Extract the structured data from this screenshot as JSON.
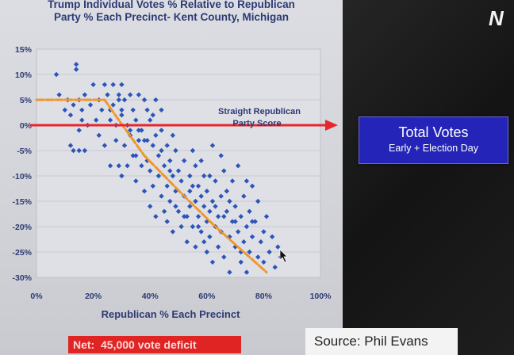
{
  "chart_data": {
    "type": "scatter",
    "title": "Trump Individual Votes % Relative to Republican Party % Each Precinct- Kent County, Michigan",
    "title_lines": [
      "Trump Individual Votes % Relative to Republican",
      "Party % Each Precinct- Kent County, Michigan"
    ],
    "xlabel": "Republican % Each Precinct",
    "ylabel": "",
    "xlim": [
      0,
      100
    ],
    "ylim": [
      -30,
      15
    ],
    "x_ticks": [
      0,
      20,
      40,
      60,
      80,
      100
    ],
    "x_tick_labels": [
      "0%",
      "20%",
      "40%",
      "60%",
      "80%",
      "100%"
    ],
    "y_ticks": [
      15,
      10,
      5,
      0,
      -5,
      -10,
      -15,
      -20,
      -25,
      -30
    ],
    "y_tick_labels": [
      "15%",
      "10%",
      "5%",
      "0%",
      "-5%",
      "-10%",
      "-15%",
      "-20%",
      "-25%",
      "-30%"
    ],
    "grid": true,
    "marker_color": "#2b55b8",
    "trend_color": "#f0962a",
    "reference_color": "#e5262a",
    "series": [
      {
        "points": [
          [
            7,
            10
          ],
          [
            8,
            6
          ],
          [
            10,
            3
          ],
          [
            11,
            5
          ],
          [
            12,
            2
          ],
          [
            13,
            4
          ],
          [
            14,
            12
          ],
          [
            14,
            11
          ],
          [
            15,
            5
          ],
          [
            16,
            3
          ],
          [
            16,
            1
          ],
          [
            17,
            6
          ],
          [
            12,
            -4
          ],
          [
            13,
            -5
          ],
          [
            15,
            -5
          ],
          [
            15,
            -1
          ],
          [
            17,
            -5
          ],
          [
            18,
            0
          ],
          [
            19,
            4
          ],
          [
            20,
            8
          ],
          [
            21,
            1
          ],
          [
            22,
            5
          ],
          [
            22,
            -2
          ],
          [
            23,
            3
          ],
          [
            24,
            8
          ],
          [
            24,
            -4
          ],
          [
            25,
            6
          ],
          [
            26,
            1
          ],
          [
            26,
            -8
          ],
          [
            27,
            8
          ],
          [
            27,
            4
          ],
          [
            28,
            0
          ],
          [
            28,
            -3
          ],
          [
            29,
            6
          ],
          [
            29,
            -8
          ],
          [
            30,
            8
          ],
          [
            30,
            2
          ],
          [
            30,
            -10
          ],
          [
            31,
            5
          ],
          [
            31,
            -4
          ],
          [
            32,
            0
          ],
          [
            32,
            -8
          ],
          [
            33,
            6
          ],
          [
            33,
            -2
          ],
          [
            34,
            3
          ],
          [
            34,
            -6
          ],
          [
            35,
            1
          ],
          [
            35,
            -11
          ],
          [
            35,
            -6
          ],
          [
            36,
            6
          ],
          [
            36,
            -3
          ],
          [
            37,
            -1
          ],
          [
            37,
            -8
          ],
          [
            38,
            5
          ],
          [
            38,
            -13
          ],
          [
            38,
            -3
          ],
          [
            39,
            3
          ],
          [
            39,
            -7
          ],
          [
            40,
            1
          ],
          [
            40,
            -9
          ],
          [
            40,
            -16
          ],
          [
            41,
            -4
          ],
          [
            41,
            -12
          ],
          [
            42,
            5
          ],
          [
            42,
            -2
          ],
          [
            42,
            -18
          ],
          [
            43,
            -6
          ],
          [
            43,
            -10
          ],
          [
            44,
            3
          ],
          [
            44,
            -14
          ],
          [
            44,
            -1
          ],
          [
            45,
            -8
          ],
          [
            45,
            -17
          ],
          [
            46,
            -4
          ],
          [
            46,
            -12
          ],
          [
            46,
            -19
          ],
          [
            47,
            -7
          ],
          [
            47,
            -15
          ],
          [
            48,
            -2
          ],
          [
            48,
            -10
          ],
          [
            48,
            -21
          ],
          [
            49,
            -13
          ],
          [
            49,
            -5
          ],
          [
            50,
            -17
          ],
          [
            50,
            -9
          ],
          [
            51,
            -11
          ],
          [
            51,
            -20
          ],
          [
            52,
            -7
          ],
          [
            52,
            -14
          ],
          [
            53,
            -18
          ],
          [
            53,
            -23
          ],
          [
            54,
            -10
          ],
          [
            54,
            -16
          ],
          [
            55,
            -12
          ],
          [
            55,
            -20
          ],
          [
            56,
            -8
          ],
          [
            56,
            -15
          ],
          [
            56,
            -24
          ],
          [
            57,
            -18
          ],
          [
            57,
            -12
          ],
          [
            58,
            -21
          ],
          [
            58,
            -14
          ],
          [
            59,
            -16
          ],
          [
            59,
            -10
          ],
          [
            60,
            -19
          ],
          [
            60,
            -25
          ],
          [
            60,
            -13
          ],
          [
            61,
            -22
          ],
          [
            61,
            -17
          ],
          [
            62,
            -15
          ],
          [
            62,
            -4
          ],
          [
            62,
            -27
          ],
          [
            63,
            -20
          ],
          [
            63,
            -11
          ],
          [
            64,
            -18
          ],
          [
            64,
            -24
          ],
          [
            65,
            -14
          ],
          [
            65,
            -21
          ],
          [
            66,
            -9
          ],
          [
            66,
            -26
          ],
          [
            67,
            -17
          ],
          [
            67,
            -13
          ],
          [
            68,
            -22
          ],
          [
            68,
            -29
          ],
          [
            69,
            -19
          ],
          [
            69,
            -11
          ],
          [
            70,
            -16
          ],
          [
            70,
            -24
          ],
          [
            71,
            -21
          ],
          [
            71,
            -8
          ],
          [
            72,
            -27
          ],
          [
            72,
            -18
          ],
          [
            73,
            -14
          ],
          [
            73,
            -23
          ],
          [
            74,
            -20
          ],
          [
            74,
            -29
          ],
          [
            75,
            -17
          ],
          [
            75,
            -25
          ],
          [
            76,
            -22
          ],
          [
            76,
            -12
          ],
          [
            77,
            -19
          ],
          [
            78,
            -26
          ],
          [
            78,
            -15
          ],
          [
            79,
            -23
          ],
          [
            80,
            -21
          ],
          [
            80,
            -27
          ],
          [
            81,
            -18
          ],
          [
            82,
            -25
          ],
          [
            83,
            -22
          ],
          [
            84,
            -28
          ],
          [
            85,
            -24
          ],
          [
            86,
            -26
          ],
          [
            30,
            3
          ],
          [
            33,
            -1
          ],
          [
            26,
            3
          ],
          [
            29,
            5
          ],
          [
            36,
            -1
          ],
          [
            39,
            -3
          ],
          [
            41,
            2
          ],
          [
            44,
            -5
          ],
          [
            47,
            -9
          ],
          [
            49,
            -16
          ],
          [
            52,
            -18
          ],
          [
            54,
            -13
          ],
          [
            57,
            -20
          ],
          [
            59,
            -23
          ],
          [
            61,
            -10
          ],
          [
            63,
            -16
          ],
          [
            66,
            -18
          ],
          [
            68,
            -15
          ],
          [
            70,
            -19
          ],
          [
            72,
            -25
          ],
          [
            74,
            -11
          ],
          [
            76,
            -19
          ],
          [
            65,
            -6
          ],
          [
            58,
            -7
          ],
          [
            55,
            -5
          ]
        ]
      }
    ],
    "trend_points": [
      [
        0,
        5
      ],
      [
        24,
        5
      ],
      [
        29,
        1
      ],
      [
        38,
        -6
      ],
      [
        52,
        -14
      ],
      [
        63,
        -20
      ],
      [
        73,
        -25
      ],
      [
        81,
        -29
      ]
    ],
    "reference_line": {
      "y": 0,
      "label_lines": [
        "Straight Republican",
        "Party Score"
      ]
    }
  },
  "callout": {
    "title": "Total Votes",
    "subtitle": "Early + Election Day",
    "color": "#2424b8"
  },
  "net_label": {
    "text": "Net:  45,000 vote deficit",
    "color": "#e02424"
  },
  "source_label": {
    "text": "Source: Phil Evans"
  },
  "logo": {
    "text": "N"
  }
}
